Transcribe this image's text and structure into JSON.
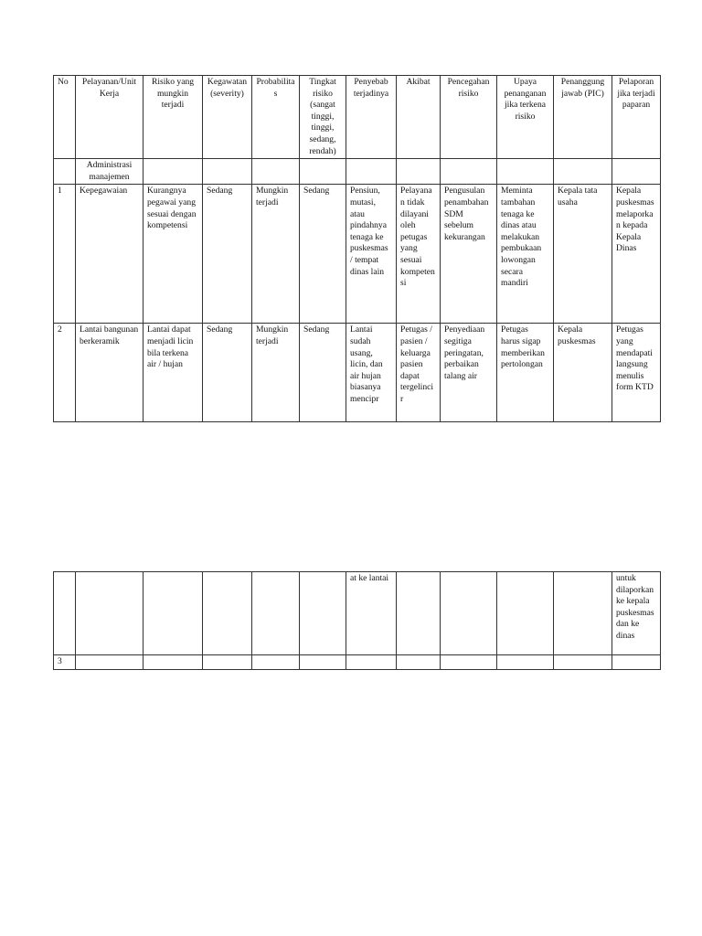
{
  "headers": [
    "No",
    "Pelayanan/Unit Kerja",
    "Risiko yang mungkin terjadi",
    "Kegawatan (severity)",
    "Probabilitas",
    "Tingkat risiko (sangat tinggi, tinggi, sedang, rendah)",
    "Penyebab terjadinya",
    "Akibat",
    "Pencegahan risiko",
    "Upaya penanganan jika terkena risiko",
    "Penanggung jawab (PIC)",
    "Pelaporan jika terjadi paparan"
  ],
  "section": "Administrasi manajemen",
  "rows": [
    [
      "1",
      "Kepegawaian",
      "Kurangnya pegawai yang sesuai dengan kompetensi",
      "Sedang",
      "Mungkin terjadi",
      "Sedang",
      "Pensiun, mutasi, atau pindahnya tenaga ke puskesmas / tempat dinas lain",
      "Pelayanan tidak dilayani oleh petugas yang sesuai kompetensi",
      "Pengusulan penambahan SDM sebelum kekurangan",
      "Meminta tambahan tenaga ke dinas atau melakukan pembukaan lowongan secara mandiri",
      "Kepala tata usaha",
      "Kepala puskesmas melaporkan kepada Kepala Dinas"
    ],
    [
      "2",
      "Lantai bangunan berkeramik",
      "Lantai dapat menjadi licin bila terkena air / hujan",
      "Sedang",
      "Mungkin terjadi",
      "Sedang",
      "Lantai sudah usang, licin, dan air hujan biasanya menciprat ke lantai",
      "Petugas / pasien / keluarga pasien dapat tergelincir",
      "Penyediaan segitiga peringatan, perbaikan talang air",
      "Petugas harus sigap memberikan pertolongan",
      "Kepala puskesmas",
      "Petugas yang mendapati langsung menulis form KTD untuk dilaporkan ke kepala puskesmas dan ke dinas"
    ],
    [
      "3",
      "",
      "",
      "",
      "",
      "",
      "",
      "",
      "",
      "",
      "",
      ""
    ]
  ],
  "page1_row2": [
    "2",
    "Lantai bangunan berkeramik",
    "Lantai dapat menjadi licin bila terkena air / hujan",
    "Sedang",
    "Mungkin terjadi",
    "Sedang",
    "Lantai sudah usang, licin, dan air hujan biasanya mencipr",
    "Petugas / pasien / keluarga pasien dapat tergelincir",
    "Penyediaan segitiga peringatan, perbaikan talang air",
    "Petugas harus sigap memberikan pertolongan",
    "Kepala puskesmas",
    "Petugas yang mendapati langsung menulis form KTD"
  ],
  "page2_row2_cont": [
    "",
    "",
    "",
    "",
    "",
    "",
    "at ke lantai",
    "",
    "",
    "",
    "",
    "untuk dilaporkan ke kepala puskesmas dan ke dinas"
  ]
}
